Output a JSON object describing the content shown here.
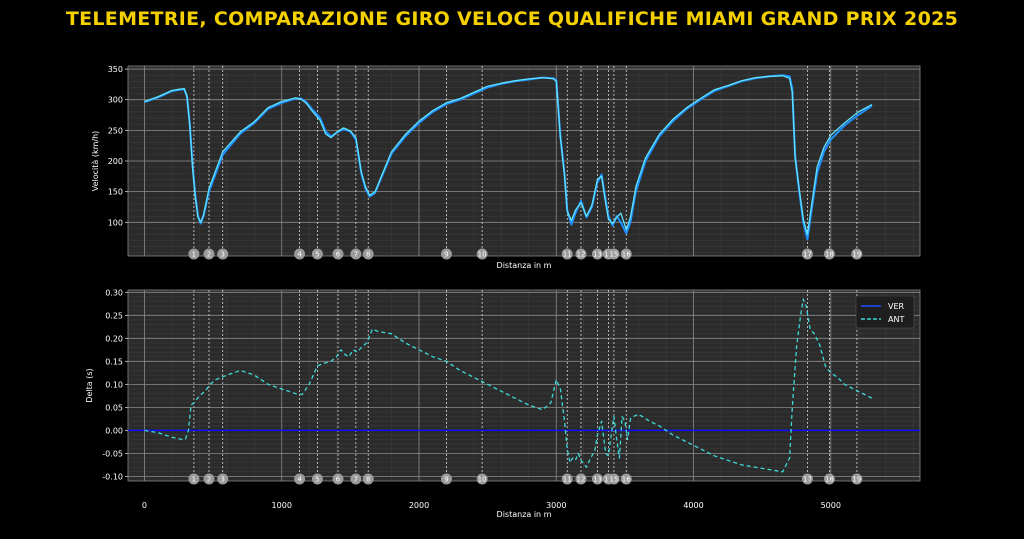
{
  "title": "TELEMETRIE, COMPARAZIONE GIRO VELOCE QUALIFICHE MIAMI GRAND PRIX 2025",
  "colors": {
    "background": "#000000",
    "plot_bg": "#2b2b2b",
    "title": "#f5d000",
    "ver": "#1f4fff",
    "ant": "#3fd8d8",
    "speed_ver": "#1e90ff",
    "speed_ant": "#5fe3ff",
    "corner_marker": "#9a9a9a",
    "zero_line": "#1010ff"
  },
  "chart_data": [
    {
      "type": "line",
      "xlabel": "Distanza in m",
      "ylabel": "Velocità (km/h)",
      "xlim": [
        -120,
        5650
      ],
      "ylim": [
        45,
        355
      ],
      "yticks": [
        100,
        150,
        200,
        250,
        300,
        350
      ],
      "grid": true,
      "corners": [
        {
          "label": "1",
          "x": 360
        },
        {
          "label": "2",
          "x": 470
        },
        {
          "label": "3",
          "x": 570
        },
        {
          "label": "4",
          "x": 1130
        },
        {
          "label": "5",
          "x": 1260
        },
        {
          "label": "6",
          "x": 1410
        },
        {
          "label": "7",
          "x": 1540
        },
        {
          "label": "8",
          "x": 1630
        },
        {
          "label": "9",
          "x": 2200
        },
        {
          "label": "10",
          "x": 2460
        },
        {
          "label": "11",
          "x": 3080
        },
        {
          "label": "12",
          "x": 3180
        },
        {
          "label": "13",
          "x": 3300
        },
        {
          "label": "14",
          "x": 3380
        },
        {
          "label": "15",
          "x": 3420
        },
        {
          "label": "16",
          "x": 3510
        },
        {
          "label": "17",
          "x": 4830
        },
        {
          "label": "18",
          "x": 4990
        },
        {
          "label": "19",
          "x": 5190
        }
      ],
      "series": [
        {
          "name": "VER",
          "x": [
            0,
            100,
            200,
            250,
            290,
            310,
            330,
            350,
            370,
            390,
            410,
            430,
            470,
            520,
            570,
            700,
            800,
            900,
            1000,
            1100,
            1140,
            1180,
            1220,
            1250,
            1280,
            1320,
            1360,
            1400,
            1450,
            1500,
            1540,
            1580,
            1610,
            1640,
            1680,
            1720,
            1800,
            1900,
            2000,
            2100,
            2200,
            2300,
            2400,
            2500,
            2600,
            2700,
            2800,
            2900,
            2980,
            3000,
            3030,
            3060,
            3080,
            3110,
            3140,
            3180,
            3220,
            3260,
            3300,
            3330,
            3350,
            3380,
            3410,
            3440,
            3470,
            3510,
            3540,
            3580,
            3650,
            3750,
            3850,
            3950,
            4050,
            4150,
            4250,
            4350,
            4450,
            4550,
            4650,
            4700,
            4720,
            4740,
            4770,
            4800,
            4830,
            4860,
            4900,
            4950,
            5000,
            5100,
            5200,
            5300
          ],
          "y": [
            296,
            304,
            314,
            316,
            317,
            305,
            260,
            195,
            145,
            110,
            98,
            110,
            150,
            180,
            210,
            245,
            262,
            285,
            295,
            302,
            302,
            296,
            285,
            278,
            270,
            248,
            240,
            246,
            252,
            248,
            235,
            180,
            155,
            142,
            148,
            170,
            212,
            240,
            262,
            280,
            293,
            300,
            310,
            320,
            326,
            330,
            333,
            336,
            335,
            332,
            240,
            180,
            120,
            96,
            115,
            135,
            108,
            125,
            165,
            178,
            150,
            110,
            95,
            110,
            100,
            82,
            100,
            150,
            200,
            240,
            265,
            285,
            300,
            314,
            322,
            330,
            335,
            338,
            340,
            338,
            318,
            210,
            150,
            100,
            72,
            120,
            180,
            215,
            235,
            258,
            275,
            290
          ]
        },
        {
          "name": "ANT",
          "x": [
            0,
            100,
            200,
            250,
            290,
            310,
            330,
            350,
            370,
            390,
            410,
            430,
            470,
            520,
            570,
            700,
            800,
            900,
            1000,
            1100,
            1140,
            1180,
            1220,
            1250,
            1280,
            1320,
            1360,
            1400,
            1450,
            1500,
            1540,
            1580,
            1610,
            1640,
            1680,
            1720,
            1800,
            1900,
            2000,
            2100,
            2200,
            2300,
            2400,
            2500,
            2600,
            2700,
            2800,
            2900,
            2980,
            3000,
            3030,
            3060,
            3080,
            3110,
            3140,
            3180,
            3220,
            3260,
            3300,
            3330,
            3350,
            3380,
            3410,
            3440,
            3470,
            3510,
            3540,
            3580,
            3650,
            3750,
            3850,
            3950,
            4050,
            4150,
            4250,
            4350,
            4450,
            4550,
            4650,
            4700,
            4720,
            4740,
            4770,
            4800,
            4830,
            4860,
            4900,
            4950,
            5000,
            5100,
            5200,
            5300
          ],
          "y": [
            297,
            305,
            315,
            317,
            318,
            306,
            258,
            190,
            140,
            108,
            100,
            112,
            155,
            185,
            215,
            248,
            264,
            287,
            297,
            303,
            301,
            294,
            282,
            274,
            266,
            244,
            238,
            247,
            254,
            249,
            238,
            182,
            158,
            144,
            150,
            172,
            215,
            243,
            265,
            282,
            295,
            302,
            312,
            322,
            327,
            331,
            334,
            336,
            334,
            330,
            238,
            176,
            118,
            103,
            120,
            132,
            110,
            128,
            170,
            175,
            145,
            105,
            98,
            108,
            115,
            88,
            108,
            158,
            205,
            243,
            268,
            287,
            302,
            316,
            323,
            331,
            336,
            338,
            339,
            335,
            312,
            205,
            155,
            105,
            80,
            128,
            190,
            222,
            242,
            262,
            280,
            292
          ]
        }
      ]
    },
    {
      "type": "line",
      "xlabel": "Distanza in m",
      "ylabel": "Delta (s)",
      "xlim": [
        -120,
        5650
      ],
      "ylim": [
        -0.11,
        0.305
      ],
      "yticks": [
        -0.1,
        -0.05,
        0.0,
        0.05,
        0.1,
        0.15,
        0.2,
        0.25,
        0.3
      ],
      "xticks": [
        0,
        1000,
        2000,
        3000,
        4000,
        5000
      ],
      "grid": true,
      "legend": "top-right",
      "series": [
        {
          "name": "VER",
          "x": [
            -120,
            5650
          ],
          "y": [
            0,
            0
          ]
        },
        {
          "name": "ANT",
          "x": [
            0,
            100,
            200,
            280,
            300,
            320,
            340,
            360,
            400,
            440,
            480,
            520,
            560,
            600,
            700,
            800,
            900,
            1000,
            1100,
            1150,
            1200,
            1260,
            1300,
            1360,
            1400,
            1430,
            1460,
            1490,
            1520,
            1550,
            1580,
            1620,
            1660,
            1700,
            1800,
            1900,
            2000,
            2100,
            2200,
            2300,
            2400,
            2500,
            2600,
            2700,
            2800,
            2900,
            2960,
            3000,
            3030,
            3060,
            3080,
            3100,
            3120,
            3140,
            3160,
            3180,
            3220,
            3250,
            3280,
            3300,
            3330,
            3360,
            3380,
            3400,
            3420,
            3440,
            3460,
            3480,
            3500,
            3520,
            3540,
            3560,
            3600,
            3680,
            3750,
            3850,
            3950,
            4050,
            4150,
            4250,
            4350,
            4450,
            4550,
            4650,
            4700,
            4720,
            4750,
            4780,
            4800,
            4820,
            4850,
            4880,
            4920,
            4960,
            5000,
            5050,
            5100,
            5200,
            5300
          ],
          "y": [
            0.0,
            -0.005,
            -0.015,
            -0.02,
            -0.018,
            0.0,
            0.055,
            0.06,
            0.075,
            0.085,
            0.1,
            0.11,
            0.115,
            0.12,
            0.13,
            0.12,
            0.1,
            0.09,
            0.08,
            0.078,
            0.1,
            0.14,
            0.145,
            0.15,
            0.16,
            0.175,
            0.165,
            0.16,
            0.175,
            0.17,
            0.18,
            0.19,
            0.22,
            0.215,
            0.21,
            0.19,
            0.175,
            0.16,
            0.15,
            0.13,
            0.115,
            0.1,
            0.085,
            0.07,
            0.055,
            0.045,
            0.06,
            0.11,
            0.09,
            0.02,
            -0.04,
            -0.07,
            -0.06,
            -0.065,
            -0.05,
            -0.065,
            -0.08,
            -0.06,
            -0.045,
            -0.01,
            0.02,
            -0.05,
            -0.055,
            -0.01,
            0.03,
            -0.02,
            -0.06,
            0.03,
            0.02,
            -0.02,
            0.025,
            0.03,
            0.035,
            0.02,
            0.01,
            -0.01,
            -0.025,
            -0.04,
            -0.055,
            -0.065,
            -0.075,
            -0.08,
            -0.085,
            -0.09,
            -0.06,
            0.05,
            0.18,
            0.25,
            0.285,
            0.27,
            0.22,
            0.21,
            0.185,
            0.14,
            0.125,
            0.115,
            0.1,
            0.085,
            0.07
          ]
        }
      ]
    }
  ]
}
